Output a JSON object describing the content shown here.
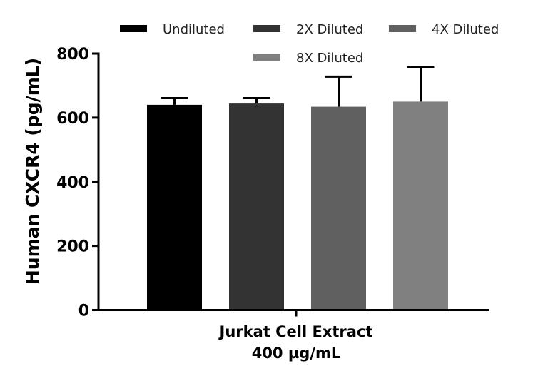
{
  "chart_data": {
    "type": "bar",
    "title": "",
    "xlabel": [
      "Jurkat Cell Extract",
      "400 µg/mL"
    ],
    "ylabel": "Human CXCR4 (pg/mL)",
    "ylim": [
      0,
      800
    ],
    "yticks": [
      "0",
      "200",
      "400",
      "600",
      "800"
    ],
    "grid": false,
    "legend_position": "top",
    "series": [
      {
        "name": "Undiluted",
        "value": 640,
        "error": 21,
        "color": "#000000"
      },
      {
        "name": "2X Diluted",
        "value": 644,
        "error": 17,
        "color": "#333333"
      },
      {
        "name": "4X Diluted",
        "value": 634,
        "error": 94,
        "color": "#606060"
      },
      {
        "name": "8X Diluted",
        "value": 650,
        "error": 107,
        "color": "#808080"
      }
    ]
  }
}
